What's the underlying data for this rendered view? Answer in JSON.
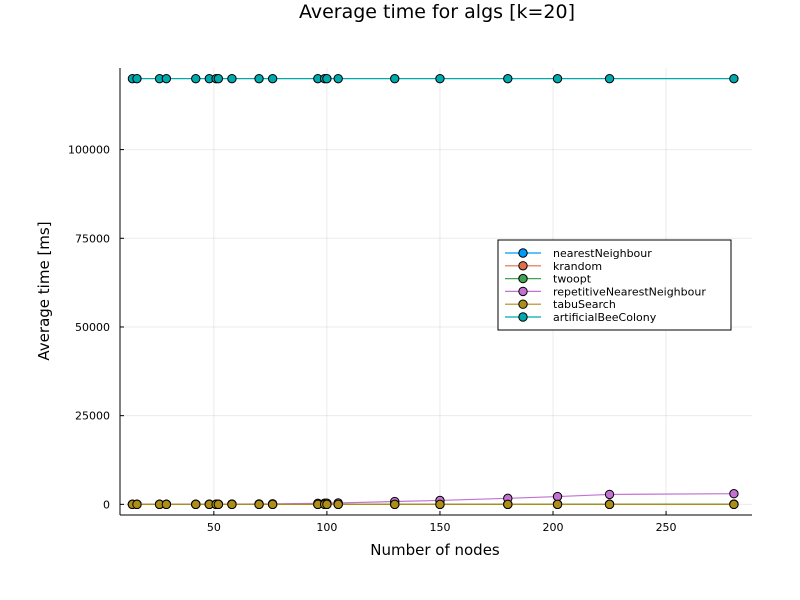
{
  "chart_data": {
    "type": "line",
    "title": "Average time for algs [k=20]",
    "xlabel": "Number of nodes",
    "ylabel": "Average time [ms]",
    "xlim": [
      8.5,
      288
    ],
    "ylim": [
      -3000,
      123000
    ],
    "xticks": [
      50,
      100,
      150,
      200,
      250
    ],
    "xtick_labels": [
      "50",
      "100",
      "150",
      "200",
      "250"
    ],
    "yticks": [
      0,
      25000,
      50000,
      75000,
      100000
    ],
    "ytick_labels": [
      "0",
      "25000",
      "50000",
      "75000",
      "100000"
    ],
    "grid": true,
    "legend_position": "right",
    "x": [
      14,
      16,
      26,
      29,
      42,
      48,
      51,
      52,
      58,
      70,
      76,
      96,
      99,
      100,
      105,
      130,
      150,
      180,
      202,
      225,
      280
    ],
    "series": [
      {
        "name": "nearestNeighbour",
        "color": "#009AFA",
        "values": [
          0,
          0,
          0,
          0,
          0,
          0,
          0,
          0,
          0,
          0,
          0,
          0,
          0,
          0,
          0,
          1,
          1,
          2,
          2,
          3,
          5
        ]
      },
      {
        "name": "krandom",
        "color": "#E36F47",
        "values": [
          0,
          0,
          0,
          0,
          0,
          0,
          0,
          0,
          0,
          0,
          0,
          0,
          0,
          0,
          0,
          0,
          0,
          0,
          0,
          0,
          0
        ]
      },
      {
        "name": "twoopt",
        "color": "#3EA44E",
        "values": [
          0,
          0,
          0,
          0,
          1,
          1,
          1,
          1,
          1,
          2,
          2,
          4,
          4,
          4,
          5,
          8,
          12,
          20,
          28,
          38,
          70
        ]
      },
      {
        "name": "repetitiveNearestNeighbour",
        "color": "#C371D2",
        "values": [
          2,
          3,
          8,
          10,
          25,
          35,
          45,
          50,
          65,
          110,
          150,
          300,
          330,
          340,
          400,
          800,
          1100,
          1700,
          2200,
          2800,
          3000
        ]
      },
      {
        "name": "tabuSearch",
        "color": "#AC8E18",
        "values": [
          0,
          0,
          0,
          0,
          0,
          0,
          0,
          0,
          0,
          0,
          0,
          0,
          0,
          0,
          0,
          0,
          0,
          0,
          0,
          0,
          0
        ]
      },
      {
        "name": "artificialBeeColony",
        "color": "#00A9AD",
        "values": [
          120000,
          120000,
          120000,
          120000,
          120000,
          120000,
          120000,
          120000,
          120000,
          120000,
          120000,
          120000,
          120000,
          120000,
          120000,
          120000,
          120000,
          120000,
          120000,
          120000,
          120000
        ]
      }
    ]
  }
}
